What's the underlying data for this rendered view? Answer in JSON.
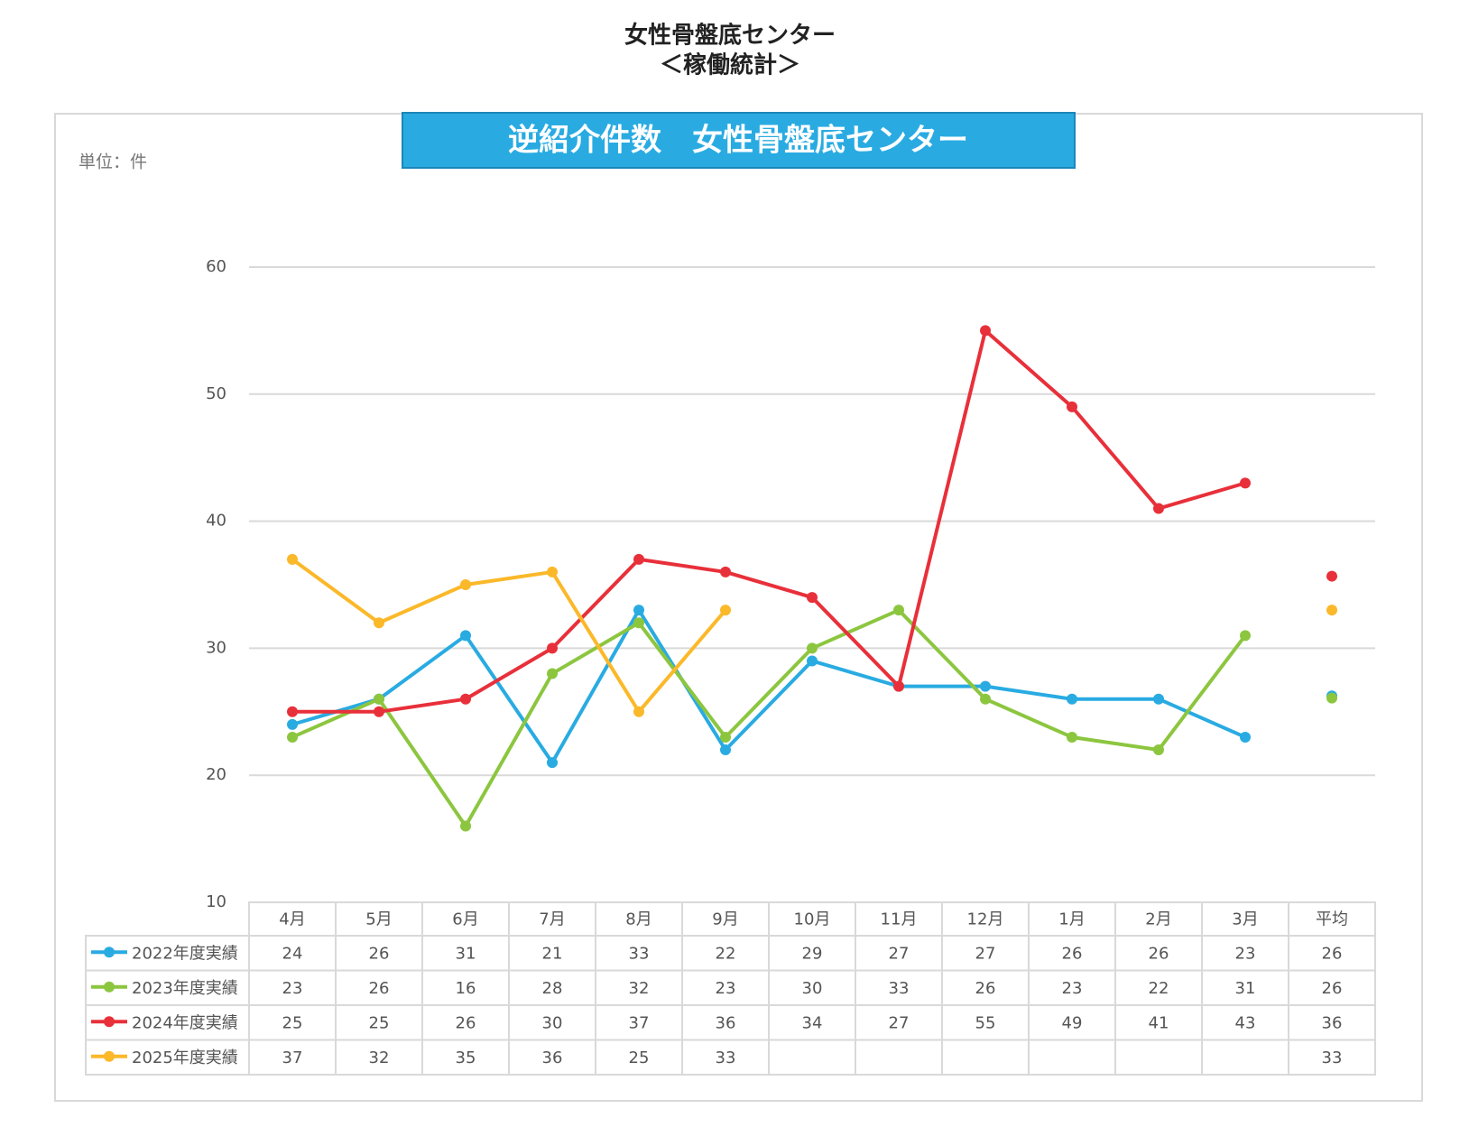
{
  "page_title": "女性骨盤底センター",
  "page_subtitle": "＜稼働統計＞",
  "chart_data": {
    "type": "line",
    "title": "逆紹介件数　女性骨盤底センター",
    "unit_label": "単位：件",
    "categories": [
      "4月",
      "5月",
      "6月",
      "7月",
      "8月",
      "9月",
      "10月",
      "11月",
      "12月",
      "1月",
      "2月",
      "3月"
    ],
    "average_header": "平均",
    "ylim": [
      10,
      60
    ],
    "yticks": [
      10,
      20,
      30,
      40,
      50,
      60
    ],
    "grid": true,
    "series": [
      {
        "name": "2022年度実績",
        "color": "#29abe2",
        "values": [
          24,
          26,
          31,
          21,
          33,
          22,
          29,
          27,
          27,
          26,
          26,
          23
        ],
        "average": 26.25,
        "average_label": "26"
      },
      {
        "name": "2023年度実績",
        "color": "#8cc63f",
        "values": [
          23,
          26,
          16,
          28,
          32,
          23,
          30,
          33,
          26,
          23,
          22,
          31
        ],
        "average": 26.08,
        "average_label": "26"
      },
      {
        "name": "2024年度実績",
        "color": "#e8303a",
        "values": [
          25,
          25,
          26,
          30,
          37,
          36,
          34,
          27,
          55,
          49,
          41,
          43
        ],
        "average": 35.67,
        "average_label": "36"
      },
      {
        "name": "2025年度実績",
        "color": "#fbb829",
        "values": [
          37,
          32,
          35,
          36,
          25,
          33,
          null,
          null,
          null,
          null,
          null,
          null
        ],
        "average": 33,
        "average_label": "33"
      }
    ]
  }
}
